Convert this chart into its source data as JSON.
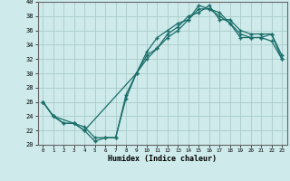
{
  "xlabel": "Humidex (Indice chaleur)",
  "bg_color": "#ceeaea",
  "grid_color": "#aacccc",
  "line_color": "#1a6e6a",
  "xlim": [
    -0.5,
    23.5
  ],
  "ylim": [
    20,
    40
  ],
  "xtick_labels": [
    "0",
    "1",
    "2",
    "3",
    "4",
    "5",
    "6",
    "7",
    "8",
    "9",
    "10",
    "11",
    "12",
    "13",
    "14",
    "15",
    "16",
    "17",
    "18",
    "19",
    "20",
    "21",
    "22",
    "23"
  ],
  "xtick_vals": [
    0,
    1,
    2,
    3,
    4,
    5,
    6,
    7,
    8,
    9,
    10,
    11,
    12,
    13,
    14,
    15,
    16,
    17,
    18,
    19,
    20,
    21,
    22,
    23
  ],
  "ytick_vals": [
    20,
    22,
    24,
    26,
    28,
    30,
    32,
    34,
    36,
    38,
    40
  ],
  "line1_x": [
    0,
    1,
    2,
    3,
    4,
    5,
    6,
    7,
    8,
    9,
    10,
    11,
    12,
    13,
    14,
    15,
    16,
    17,
    18,
    19,
    20,
    21,
    22,
    23
  ],
  "line1_y": [
    26,
    24,
    23,
    23,
    22,
    20.5,
    21,
    21,
    27,
    30,
    33,
    35,
    36,
    37,
    37.5,
    39,
    39,
    38.5,
    37,
    35.5,
    35,
    35,
    34.5,
    32
  ],
  "line2_x": [
    0,
    1,
    3,
    4,
    5,
    6,
    7,
    8,
    9,
    10,
    11,
    12,
    13,
    14,
    15,
    16,
    17,
    18,
    19,
    20,
    21,
    22,
    23
  ],
  "line2_y": [
    26,
    24,
    23,
    22.5,
    21,
    21,
    21,
    26.5,
    30,
    32.5,
    33.5,
    35.5,
    36.5,
    38,
    38.5,
    39.5,
    37.5,
    37.5,
    36,
    35.5,
    35.5,
    35.5,
    32.5
  ],
  "line3_x": [
    0,
    1,
    2,
    3,
    4,
    9,
    10,
    11,
    12,
    13,
    14,
    15,
    16,
    17,
    18,
    19,
    20,
    21,
    22,
    23
  ],
  "line3_y": [
    26,
    24,
    23,
    23,
    22,
    30,
    32,
    33.5,
    35,
    36,
    37.5,
    39.5,
    39,
    38,
    37,
    35,
    35,
    35,
    35.5,
    32
  ]
}
